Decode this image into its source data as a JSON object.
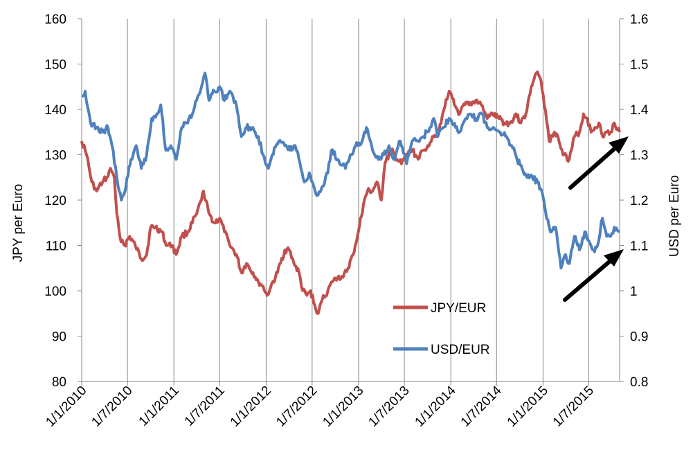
{
  "chart_data": {
    "type": "line",
    "title": "",
    "xlabel": "",
    "ylabel_left": "JPY per Euro",
    "ylabel_right": "USD per Euro",
    "x_ticks": [
      "1/1/2010",
      "1/7/2010",
      "1/1/2011",
      "1/7/2011",
      "1/1/2012",
      "1/7/2012",
      "1/1/2013",
      "1/7/2013",
      "1/1/2014",
      "1/7/2014",
      "1/1/2015",
      "1/7/2015"
    ],
    "x_range": [
      "2010-01-01",
      "2015-10-31"
    ],
    "y_left": {
      "min": 80,
      "max": 160,
      "step": 10,
      "ticks": [
        "80",
        "90",
        "100",
        "110",
        "120",
        "130",
        "140",
        "150",
        "160"
      ]
    },
    "y_right": {
      "min": 0.8,
      "max": 1.6,
      "step": 0.1,
      "ticks": [
        "0.8",
        "0.9",
        "1",
        "1.1",
        "1.2",
        "1.3",
        "1.4",
        "1.5",
        "1.6"
      ]
    },
    "grid": "vertical",
    "legend_position": "lower-middle",
    "series": [
      {
        "name": "JPY/EUR",
        "axis": "left",
        "color": "#C0504D",
        "points": [
          [
            "2010-01-01",
            133
          ],
          [
            "2010-01-20",
            130
          ],
          [
            "2010-02-10",
            124
          ],
          [
            "2010-03-01",
            122
          ],
          [
            "2010-03-25",
            124
          ],
          [
            "2010-04-10",
            125
          ],
          [
            "2010-04-25",
            127
          ],
          [
            "2010-05-10",
            125
          ],
          [
            "2010-05-20",
            117
          ],
          [
            "2010-06-01",
            112
          ],
          [
            "2010-06-20",
            110
          ],
          [
            "2010-07-10",
            112
          ],
          [
            "2010-08-01",
            110
          ],
          [
            "2010-08-25",
            107
          ],
          [
            "2010-09-15",
            108
          ],
          [
            "2010-10-01",
            114
          ],
          [
            "2010-10-20",
            114
          ],
          [
            "2010-11-15",
            113
          ],
          [
            "2010-12-01",
            110
          ],
          [
            "2010-12-25",
            110
          ],
          [
            "2011-01-10",
            108
          ],
          [
            "2011-02-01",
            112
          ],
          [
            "2011-02-25",
            113
          ],
          [
            "2011-03-15",
            115
          ],
          [
            "2011-04-01",
            117
          ],
          [
            "2011-04-20",
            120
          ],
          [
            "2011-04-28",
            122
          ],
          [
            "2011-05-20",
            117
          ],
          [
            "2011-06-10",
            115
          ],
          [
            "2011-07-01",
            116
          ],
          [
            "2011-07-20",
            113
          ],
          [
            "2011-08-10",
            110
          ],
          [
            "2011-09-05",
            108
          ],
          [
            "2011-09-25",
            104
          ],
          [
            "2011-10-15",
            106
          ],
          [
            "2011-11-10",
            104
          ],
          [
            "2011-12-01",
            102
          ],
          [
            "2011-12-20",
            101
          ],
          [
            "2012-01-05",
            99
          ],
          [
            "2012-01-20",
            101
          ],
          [
            "2012-02-15",
            104
          ],
          [
            "2012-03-15",
            109
          ],
          [
            "2012-04-01",
            109
          ],
          [
            "2012-04-20",
            106
          ],
          [
            "2012-05-10",
            104
          ],
          [
            "2012-05-25",
            100
          ],
          [
            "2012-06-10",
            99
          ],
          [
            "2012-06-25",
            100
          ],
          [
            "2012-07-15",
            96
          ],
          [
            "2012-07-25",
            95
          ],
          [
            "2012-08-10",
            98
          ],
          [
            "2012-09-01",
            100
          ],
          [
            "2012-09-20",
            102
          ],
          [
            "2012-10-10",
            103
          ],
          [
            "2012-11-01",
            103
          ],
          [
            "2012-11-20",
            105
          ],
          [
            "2012-12-10",
            108
          ],
          [
            "2012-12-31",
            113
          ],
          [
            "2013-01-20",
            119
          ],
          [
            "2013-02-05",
            122
          ],
          [
            "2013-02-25",
            122
          ],
          [
            "2013-03-15",
            124
          ],
          [
            "2013-04-01",
            120
          ],
          [
            "2013-04-15",
            128
          ],
          [
            "2013-05-10",
            131
          ],
          [
            "2013-06-01",
            129
          ],
          [
            "2013-06-20",
            128
          ],
          [
            "2013-07-10",
            130
          ],
          [
            "2013-08-01",
            131
          ],
          [
            "2013-08-25",
            129
          ],
          [
            "2013-09-15",
            131
          ],
          [
            "2013-10-01",
            132
          ],
          [
            "2013-10-20",
            134
          ],
          [
            "2013-11-15",
            135
          ],
          [
            "2013-12-05",
            140
          ],
          [
            "2013-12-25",
            144
          ],
          [
            "2014-01-15",
            141
          ],
          [
            "2014-02-05",
            139
          ],
          [
            "2014-02-25",
            141
          ],
          [
            "2014-03-15",
            141
          ],
          [
            "2014-04-10",
            142
          ],
          [
            "2014-05-01",
            141
          ],
          [
            "2014-05-25",
            138
          ],
          [
            "2014-06-15",
            139
          ],
          [
            "2014-07-10",
            138
          ],
          [
            "2014-08-01",
            137
          ],
          [
            "2014-08-25",
            137
          ],
          [
            "2014-09-15",
            139
          ],
          [
            "2014-10-05",
            137
          ],
          [
            "2014-10-25",
            139
          ],
          [
            "2014-11-15",
            145
          ],
          [
            "2014-12-05",
            148
          ],
          [
            "2014-12-20",
            147
          ],
          [
            "2015-01-10",
            140
          ],
          [
            "2015-01-25",
            133
          ],
          [
            "2015-02-15",
            135
          ],
          [
            "2015-03-05",
            133
          ],
          [
            "2015-03-25",
            130
          ],
          [
            "2015-04-15",
            129
          ],
          [
            "2015-05-05",
            134
          ],
          [
            "2015-05-25",
            135
          ],
          [
            "2015-06-10",
            139
          ],
          [
            "2015-06-25",
            138
          ],
          [
            "2015-07-10",
            135
          ],
          [
            "2015-07-25",
            136
          ],
          [
            "2015-08-10",
            137
          ],
          [
            "2015-08-25",
            134
          ],
          [
            "2015-09-10",
            135
          ],
          [
            "2015-09-25",
            135
          ],
          [
            "2015-10-10",
            137
          ],
          [
            "2015-10-31",
            135
          ]
        ]
      },
      {
        "name": "USD/EUR",
        "axis": "right",
        "color": "#4F81BD",
        "points": [
          [
            "2010-01-01",
            1.43
          ],
          [
            "2010-01-15",
            1.44
          ],
          [
            "2010-02-05",
            1.37
          ],
          [
            "2010-03-01",
            1.36
          ],
          [
            "2010-03-25",
            1.35
          ],
          [
            "2010-04-15",
            1.36
          ],
          [
            "2010-05-01",
            1.32
          ],
          [
            "2010-05-20",
            1.25
          ],
          [
            "2010-06-07",
            1.2
          ],
          [
            "2010-06-25",
            1.23
          ],
          [
            "2010-07-15",
            1.29
          ],
          [
            "2010-08-05",
            1.32
          ],
          [
            "2010-08-25",
            1.27
          ],
          [
            "2010-09-15",
            1.3
          ],
          [
            "2010-10-05",
            1.38
          ],
          [
            "2010-10-25",
            1.39
          ],
          [
            "2010-11-10",
            1.41
          ],
          [
            "2010-11-30",
            1.31
          ],
          [
            "2010-12-20",
            1.32
          ],
          [
            "2011-01-10",
            1.29
          ],
          [
            "2011-02-01",
            1.36
          ],
          [
            "2011-02-20",
            1.37
          ],
          [
            "2011-03-15",
            1.39
          ],
          [
            "2011-04-01",
            1.42
          ],
          [
            "2011-04-20",
            1.45
          ],
          [
            "2011-05-04",
            1.48
          ],
          [
            "2011-05-20",
            1.42
          ],
          [
            "2011-06-10",
            1.44
          ],
          [
            "2011-07-01",
            1.45
          ],
          [
            "2011-07-20",
            1.42
          ],
          [
            "2011-08-10",
            1.44
          ],
          [
            "2011-09-05",
            1.41
          ],
          [
            "2011-09-25",
            1.34
          ],
          [
            "2011-10-15",
            1.36
          ],
          [
            "2011-11-10",
            1.36
          ],
          [
            "2011-12-01",
            1.34
          ],
          [
            "2011-12-20",
            1.3
          ],
          [
            "2012-01-10",
            1.27
          ],
          [
            "2012-01-25",
            1.3
          ],
          [
            "2012-02-20",
            1.33
          ],
          [
            "2012-03-15",
            1.32
          ],
          [
            "2012-04-05",
            1.31
          ],
          [
            "2012-04-25",
            1.32
          ],
          [
            "2012-05-10",
            1.29
          ],
          [
            "2012-05-31",
            1.24
          ],
          [
            "2012-06-20",
            1.26
          ],
          [
            "2012-07-20",
            1.21
          ],
          [
            "2012-08-10",
            1.23
          ],
          [
            "2012-09-01",
            1.26
          ],
          [
            "2012-09-15",
            1.31
          ],
          [
            "2012-10-10",
            1.29
          ],
          [
            "2012-11-10",
            1.27
          ],
          [
            "2012-11-25",
            1.29
          ],
          [
            "2012-12-20",
            1.32
          ],
          [
            "2013-01-15",
            1.33
          ],
          [
            "2013-02-01",
            1.36
          ],
          [
            "2013-02-25",
            1.31
          ],
          [
            "2013-03-20",
            1.29
          ],
          [
            "2013-04-10",
            1.3
          ],
          [
            "2013-05-01",
            1.32
          ],
          [
            "2013-05-20",
            1.29
          ],
          [
            "2013-06-15",
            1.33
          ],
          [
            "2013-07-10",
            1.28
          ],
          [
            "2013-08-01",
            1.33
          ],
          [
            "2013-08-25",
            1.33
          ],
          [
            "2013-09-15",
            1.34
          ],
          [
            "2013-10-10",
            1.36
          ],
          [
            "2013-10-25",
            1.38
          ],
          [
            "2013-11-10",
            1.34
          ],
          [
            "2013-12-01",
            1.36
          ],
          [
            "2013-12-25",
            1.38
          ],
          [
            "2014-01-20",
            1.36
          ],
          [
            "2014-02-05",
            1.35
          ],
          [
            "2014-03-01",
            1.38
          ],
          [
            "2014-03-20",
            1.39
          ],
          [
            "2014-04-10",
            1.38
          ],
          [
            "2014-05-05",
            1.39
          ],
          [
            "2014-05-25",
            1.36
          ],
          [
            "2014-06-20",
            1.36
          ],
          [
            "2014-07-15",
            1.35
          ],
          [
            "2014-08-10",
            1.34
          ],
          [
            "2014-08-30",
            1.32
          ],
          [
            "2014-09-20",
            1.29
          ],
          [
            "2014-10-10",
            1.27
          ],
          [
            "2014-10-30",
            1.25
          ],
          [
            "2014-11-20",
            1.25
          ],
          [
            "2014-12-10",
            1.24
          ],
          [
            "2014-12-31",
            1.21
          ],
          [
            "2015-01-15",
            1.16
          ],
          [
            "2015-01-30",
            1.13
          ],
          [
            "2015-02-20",
            1.14
          ],
          [
            "2015-03-13",
            1.05
          ],
          [
            "2015-03-31",
            1.08
          ],
          [
            "2015-04-15",
            1.06
          ],
          [
            "2015-05-05",
            1.12
          ],
          [
            "2015-05-25",
            1.09
          ],
          [
            "2015-06-15",
            1.13
          ],
          [
            "2015-07-01",
            1.11
          ],
          [
            "2015-07-20",
            1.09
          ],
          [
            "2015-08-05",
            1.1
          ],
          [
            "2015-08-24",
            1.16
          ],
          [
            "2015-09-10",
            1.12
          ],
          [
            "2015-09-25",
            1.12
          ],
          [
            "2015-10-10",
            1.14
          ],
          [
            "2015-10-31",
            1.13
          ]
        ]
      }
    ],
    "annotations": [
      {
        "type": "arrow",
        "series": "JPY/EUR",
        "direction": "up-right"
      },
      {
        "type": "arrow",
        "series": "USD/EUR",
        "direction": "up-right"
      }
    ]
  }
}
